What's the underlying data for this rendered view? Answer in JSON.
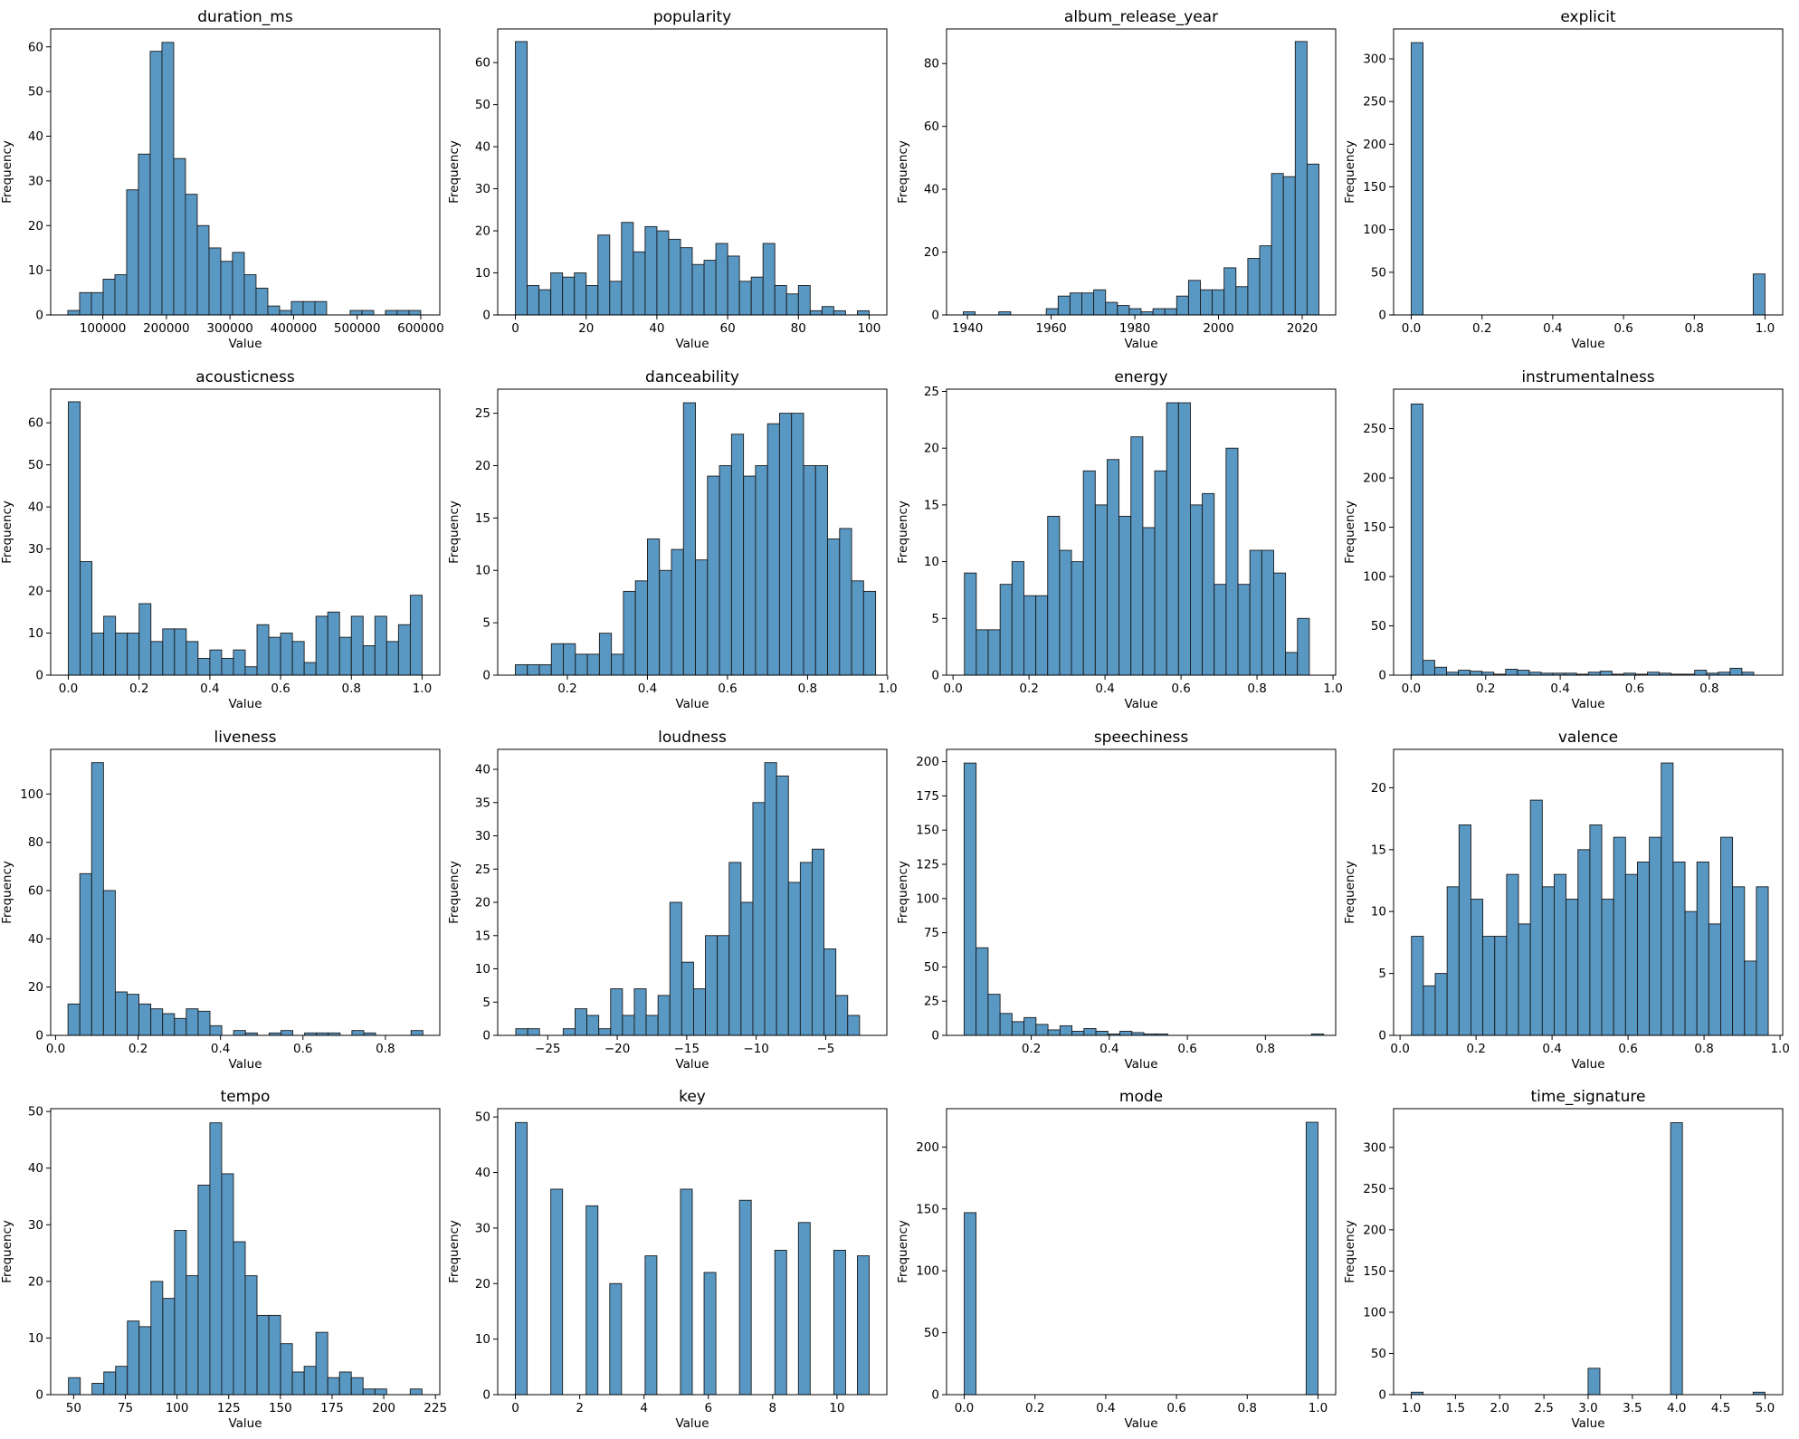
{
  "figure": {
    "type": "histogram-grid",
    "rows": 4,
    "cols": 4
  },
  "colors": {
    "bar_fill": "#4c8fbf",
    "bar_edge": "#1a1a1a"
  },
  "chart_data": [
    {
      "type": "bar",
      "title": "duration_ms",
      "xlabel": "Value",
      "ylabel": "Frequency",
      "xlim": [
        18000,
        630000
      ],
      "ylim": [
        0,
        64
      ],
      "xticks": [
        100000,
        200000,
        300000,
        400000,
        500000,
        600000
      ],
      "xtick_labels": [
        "100000",
        "200000",
        "300000",
        "400000",
        "500000",
        "600000"
      ],
      "yticks": [
        0,
        10,
        20,
        30,
        40,
        50,
        60
      ],
      "ytick_labels": [
        "0",
        "10",
        "20",
        "30",
        "40",
        "50",
        "60"
      ],
      "bin_start": 45000,
      "bin_width": 18500,
      "values": [
        1,
        5,
        5,
        8,
        9,
        28,
        36,
        59,
        61,
        35,
        27,
        20,
        15,
        12,
        14,
        9,
        6,
        2,
        1,
        3,
        3,
        3,
        0,
        0,
        1,
        1,
        0,
        1,
        1,
        1
      ]
    },
    {
      "type": "bar",
      "title": "popularity",
      "xlabel": "Value",
      "ylabel": "Frequency",
      "xlim": [
        -5,
        105
      ],
      "ylim": [
        0,
        68
      ],
      "xticks": [
        0,
        20,
        40,
        60,
        80,
        100
      ],
      "xtick_labels": [
        "0",
        "20",
        "40",
        "60",
        "80",
        "100"
      ],
      "yticks": [
        0,
        10,
        20,
        30,
        40,
        50,
        60
      ],
      "ytick_labels": [
        "0",
        "10",
        "20",
        "30",
        "40",
        "50",
        "60"
      ],
      "bin_start": 0,
      "bin_width": 3.3333,
      "values": [
        65,
        7,
        6,
        10,
        9,
        10,
        7,
        19,
        8,
        22,
        15,
        21,
        20,
        18,
        16,
        12,
        13,
        17,
        14,
        8,
        9,
        17,
        7,
        5,
        7,
        1,
        2,
        1,
        0,
        1
      ]
    },
    {
      "type": "bar",
      "title": "album_release_year",
      "xlabel": "Value",
      "ylabel": "Frequency",
      "xlim": [
        1935,
        2028
      ],
      "ylim": [
        0,
        91
      ],
      "xticks": [
        1940,
        1960,
        1980,
        2000,
        2020
      ],
      "xtick_labels": [
        "1940",
        "1960",
        "1980",
        "2000",
        "2020"
      ],
      "yticks": [
        0,
        20,
        40,
        60,
        80
      ],
      "ytick_labels": [
        "0",
        "20",
        "40",
        "60",
        "80"
      ],
      "bin_start": 1939,
      "bin_width": 2.8333,
      "values": [
        1,
        0,
        0,
        1,
        0,
        0,
        0,
        2,
        6,
        7,
        7,
        8,
        4,
        3,
        2,
        1,
        2,
        2,
        6,
        11,
        8,
        8,
        15,
        9,
        18,
        22,
        45,
        44,
        87,
        48
      ]
    },
    {
      "type": "bar",
      "title": "explicit",
      "xlabel": "Value",
      "ylabel": "Frequency",
      "xlim": [
        -0.05,
        1.05
      ],
      "ylim": [
        0,
        335
      ],
      "xticks": [
        0.0,
        0.2,
        0.4,
        0.6,
        0.8,
        1.0
      ],
      "xtick_labels": [
        "0.0",
        "0.2",
        "0.4",
        "0.6",
        "0.8",
        "1.0"
      ],
      "yticks": [
        0,
        50,
        100,
        150,
        200,
        250,
        300
      ],
      "ytick_labels": [
        "0",
        "50",
        "100",
        "150",
        "200",
        "250",
        "300"
      ],
      "bin_start": 0,
      "bin_width": 0.03333,
      "values": [
        319,
        0,
        0,
        0,
        0,
        0,
        0,
        0,
        0,
        0,
        0,
        0,
        0,
        0,
        0,
        0,
        0,
        0,
        0,
        0,
        0,
        0,
        0,
        0,
        0,
        0,
        0,
        0,
        0,
        48
      ]
    },
    {
      "type": "bar",
      "title": "acousticness",
      "xlabel": "Value",
      "ylabel": "Frequency",
      "xlim": [
        -0.05,
        1.05
      ],
      "ylim": [
        0,
        68
      ],
      "xticks": [
        0.0,
        0.2,
        0.4,
        0.6,
        0.8,
        1.0
      ],
      "xtick_labels": [
        "0.0",
        "0.2",
        "0.4",
        "0.6",
        "0.8",
        "1.0"
      ],
      "yticks": [
        0,
        10,
        20,
        30,
        40,
        50,
        60
      ],
      "ytick_labels": [
        "0",
        "10",
        "20",
        "30",
        "40",
        "50",
        "60"
      ],
      "bin_start": 0,
      "bin_width": 0.03333,
      "values": [
        65,
        27,
        10,
        14,
        10,
        10,
        17,
        8,
        11,
        11,
        8,
        4,
        6,
        4,
        6,
        2,
        12,
        9,
        10,
        8,
        3,
        14,
        15,
        9,
        14,
        7,
        14,
        8,
        12,
        19
      ]
    },
    {
      "type": "bar",
      "title": "danceability",
      "xlabel": "Value",
      "ylabel": "Frequency",
      "xlim": [
        0.026,
        0.998
      ],
      "ylim": [
        0,
        27.3
      ],
      "xticks": [
        0.2,
        0.4,
        0.6,
        0.8,
        1.0
      ],
      "xtick_labels": [
        "0.2",
        "0.4",
        "0.6",
        "0.8",
        "1.0"
      ],
      "yticks": [
        0,
        5,
        10,
        15,
        20,
        25
      ],
      "ytick_labels": [
        "0",
        "5",
        "10",
        "15",
        "20",
        "25"
      ],
      "bin_start": 0.07,
      "bin_width": 0.03,
      "values": [
        1,
        1,
        1,
        3,
        3,
        2,
        2,
        4,
        2,
        8,
        9,
        13,
        10,
        12,
        26,
        11,
        19,
        20,
        23,
        19,
        20,
        24,
        25,
        25,
        20,
        20,
        13,
        14,
        9,
        8
      ]
    },
    {
      "type": "bar",
      "title": "energy",
      "xlabel": "Value",
      "ylabel": "Frequency",
      "xlim": [
        -0.017,
        1.007
      ],
      "ylim": [
        0,
        25.2
      ],
      "xticks": [
        0.0,
        0.2,
        0.4,
        0.6,
        0.8,
        1.0
      ],
      "xtick_labels": [
        "0.0",
        "0.2",
        "0.4",
        "0.6",
        "0.8",
        "1.0"
      ],
      "yticks": [
        0,
        5,
        10,
        15,
        20,
        25
      ],
      "ytick_labels": [
        "0",
        "5",
        "10",
        "15",
        "20",
        "25"
      ],
      "bin_start": 0.03,
      "bin_width": 0.0313,
      "values": [
        9,
        4,
        4,
        8,
        10,
        7,
        7,
        14,
        11,
        10,
        18,
        15,
        19,
        14,
        21,
        13,
        18,
        24,
        24,
        15,
        16,
        8,
        20,
        8,
        11,
        11,
        9,
        2,
        5,
        0
      ]
    },
    {
      "type": "bar",
      "title": "instrumentalness",
      "xlabel": "Value",
      "ylabel": "Frequency",
      "xlim": [
        -0.047,
        0.997
      ],
      "ylim": [
        0,
        290
      ],
      "xticks": [
        0.0,
        0.2,
        0.4,
        0.6,
        0.8
      ],
      "xtick_labels": [
        "0.0",
        "0.2",
        "0.4",
        "0.6",
        "0.8"
      ],
      "yticks": [
        0,
        50,
        100,
        150,
        200,
        250
      ],
      "ytick_labels": [
        "0",
        "50",
        "100",
        "150",
        "200",
        "250"
      ],
      "bin_start": 0,
      "bin_width": 0.0317,
      "values": [
        275,
        15,
        8,
        3,
        5,
        4,
        3,
        1,
        6,
        5,
        3,
        2,
        2,
        2,
        1,
        3,
        4,
        1,
        2,
        1,
        3,
        2,
        1,
        1,
        5,
        2,
        3,
        7,
        3,
        0
      ]
    },
    {
      "type": "bar",
      "title": "liveness",
      "xlabel": "Value",
      "ylabel": "Frequency",
      "xlim": [
        -0.012,
        0.932
      ],
      "ylim": [
        0,
        118.5
      ],
      "xticks": [
        0.0,
        0.2,
        0.4,
        0.6,
        0.8
      ],
      "xtick_labels": [
        "0.0",
        "0.2",
        "0.4",
        "0.6",
        "0.8"
      ],
      "yticks": [
        0,
        20,
        40,
        60,
        80,
        100
      ],
      "ytick_labels": [
        "0",
        "20",
        "40",
        "60",
        "80",
        "100"
      ],
      "bin_start": 0.03,
      "bin_width": 0.0287,
      "values": [
        13,
        67,
        113,
        60,
        18,
        17,
        13,
        11,
        9,
        7,
        11,
        10,
        4,
        0,
        2,
        1,
        0,
        1,
        2,
        0,
        1,
        1,
        1,
        0,
        2,
        1,
        0,
        0,
        0,
        2
      ]
    },
    {
      "type": "bar",
      "title": "loudness",
      "xlabel": "Value",
      "ylabel": "Frequency",
      "xlim": [
        -28.6,
        -0.6
      ],
      "ylim": [
        0,
        43
      ],
      "xticks": [
        -25,
        -20,
        -15,
        -10,
        -5
      ],
      "xtick_labels": [
        "−25",
        "−20",
        "−15",
        "−10",
        "−5"
      ],
      "yticks": [
        0,
        5,
        10,
        15,
        20,
        25,
        30,
        35,
        40
      ],
      "ytick_labels": [
        "0",
        "5",
        "10",
        "15",
        "20",
        "25",
        "30",
        "35",
        "40"
      ],
      "bin_start": -27.3,
      "bin_width": 0.853,
      "values": [
        1,
        1,
        0,
        0,
        1,
        4,
        3,
        1,
        7,
        3,
        7,
        3,
        6,
        20,
        11,
        7,
        15,
        15,
        26,
        20,
        35,
        41,
        39,
        23,
        26,
        28,
        13,
        6,
        3,
        0
      ]
    },
    {
      "type": "bar",
      "title": "speechiness",
      "xlabel": "Value",
      "ylabel": "Frequency",
      "xlim": [
        -0.017,
        0.98
      ],
      "ylim": [
        0,
        209
      ],
      "xticks": [
        0.2,
        0.4,
        0.6,
        0.8
      ],
      "xtick_labels": [
        "0.2",
        "0.4",
        "0.6",
        "0.8"
      ],
      "yticks": [
        0,
        25,
        50,
        75,
        100,
        125,
        150,
        175,
        200
      ],
      "ytick_labels": [
        "0",
        "25",
        "50",
        "75",
        "100",
        "125",
        "150",
        "175",
        "200"
      ],
      "bin_start": 0.028,
      "bin_width": 0.0307,
      "values": [
        199,
        64,
        30,
        16,
        10,
        13,
        8,
        4,
        7,
        3,
        5,
        3,
        1,
        3,
        2,
        1,
        1,
        0,
        0,
        0,
        0,
        0,
        0,
        0,
        0,
        0,
        0,
        0,
        0,
        1
      ]
    },
    {
      "type": "bar",
      "title": "valence",
      "xlabel": "Value",
      "ylabel": "Frequency",
      "xlim": [
        -0.017,
        1.007
      ],
      "ylim": [
        0,
        23.1
      ],
      "xticks": [
        0.0,
        0.2,
        0.4,
        0.6,
        0.8,
        1.0
      ],
      "xtick_labels": [
        "0.0",
        "0.2",
        "0.4",
        "0.6",
        "0.8",
        "1.0"
      ],
      "yticks": [
        0,
        5,
        10,
        15,
        20
      ],
      "ytick_labels": [
        "0",
        "5",
        "10",
        "15",
        "20"
      ],
      "bin_start": 0.03,
      "bin_width": 0.0313,
      "values": [
        8,
        4,
        5,
        12,
        17,
        11,
        8,
        8,
        13,
        9,
        19,
        12,
        13,
        11,
        15,
        17,
        11,
        16,
        13,
        14,
        16,
        22,
        14,
        10,
        14,
        9,
        16,
        12,
        6,
        12
      ]
    },
    {
      "type": "bar",
      "title": "tempo",
      "xlabel": "Value",
      "ylabel": "Frequency",
      "xlim": [
        38.9,
        227.1
      ],
      "ylim": [
        0,
        50.5
      ],
      "xticks": [
        50,
        75,
        100,
        125,
        150,
        175,
        200,
        225
      ],
      "xtick_labels": [
        "50",
        "75",
        "100",
        "125",
        "150",
        "175",
        "200",
        "225"
      ],
      "yticks": [
        0,
        10,
        20,
        30,
        40,
        50
      ],
      "ytick_labels": [
        "0",
        "10",
        "20",
        "30",
        "40",
        "50"
      ],
      "bin_start": 47.5,
      "bin_width": 5.7,
      "values": [
        3,
        0,
        2,
        4,
        5,
        13,
        12,
        20,
        17,
        29,
        21,
        37,
        48,
        39,
        27,
        21,
        14,
        14,
        9,
        4,
        5,
        11,
        3,
        4,
        3,
        1,
        1,
        0,
        0,
        1
      ]
    },
    {
      "type": "bar",
      "title": "key",
      "xlabel": "Value",
      "ylabel": "Frequency",
      "xlim": [
        -0.55,
        11.55
      ],
      "ylim": [
        0,
        51.5
      ],
      "xticks": [
        0,
        2,
        4,
        6,
        8,
        10
      ],
      "xtick_labels": [
        "0",
        "2",
        "4",
        "6",
        "8",
        "10"
      ],
      "yticks": [
        0,
        10,
        20,
        30,
        40,
        50
      ],
      "ytick_labels": [
        "0",
        "10",
        "20",
        "30",
        "40",
        "50"
      ],
      "bin_start": 0,
      "bin_width": 0.3667,
      "values": [
        49,
        0,
        0,
        37,
        0,
        0,
        34,
        0,
        20,
        0,
        0,
        25,
        0,
        0,
        37,
        0,
        22,
        0,
        0,
        35,
        0,
        0,
        26,
        0,
        31,
        0,
        0,
        26,
        0,
        25
      ]
    },
    {
      "type": "bar",
      "title": "mode",
      "xlabel": "Value",
      "ylabel": "Frequency",
      "xlim": [
        -0.05,
        1.05
      ],
      "ylim": [
        0,
        231
      ],
      "xticks": [
        0.0,
        0.2,
        0.4,
        0.6,
        0.8,
        1.0
      ],
      "xtick_labels": [
        "0.0",
        "0.2",
        "0.4",
        "0.6",
        "0.8",
        "1.0"
      ],
      "yticks": [
        0,
        50,
        100,
        150,
        200
      ],
      "ytick_labels": [
        "0",
        "50",
        "100",
        "150",
        "200"
      ],
      "bin_start": 0,
      "bin_width": 0.03333,
      "values": [
        147,
        0,
        0,
        0,
        0,
        0,
        0,
        0,
        0,
        0,
        0,
        0,
        0,
        0,
        0,
        0,
        0,
        0,
        0,
        0,
        0,
        0,
        0,
        0,
        0,
        0,
        0,
        0,
        0,
        220
      ]
    },
    {
      "type": "bar",
      "title": "time_signature",
      "xlabel": "Value",
      "ylabel": "Frequency",
      "xlim": [
        0.8,
        5.2
      ],
      "ylim": [
        0,
        347
      ],
      "xticks": [
        1.0,
        1.5,
        2.0,
        2.5,
        3.0,
        3.5,
        4.0,
        4.5,
        5.0
      ],
      "xtick_labels": [
        "1.0",
        "1.5",
        "2.0",
        "2.5",
        "3.0",
        "3.5",
        "4.0",
        "4.5",
        "5.0"
      ],
      "yticks": [
        0,
        50,
        100,
        150,
        200,
        250,
        300
      ],
      "ytick_labels": [
        "0",
        "50",
        "100",
        "150",
        "200",
        "250",
        "300"
      ],
      "bin_start": 1,
      "bin_width": 0.1333,
      "values": [
        3,
        0,
        0,
        0,
        0,
        0,
        0,
        0,
        0,
        0,
        0,
        0,
        0,
        0,
        0,
        32,
        0,
        0,
        0,
        0,
        0,
        0,
        330,
        0,
        0,
        0,
        0,
        0,
        0,
        3
      ]
    }
  ]
}
